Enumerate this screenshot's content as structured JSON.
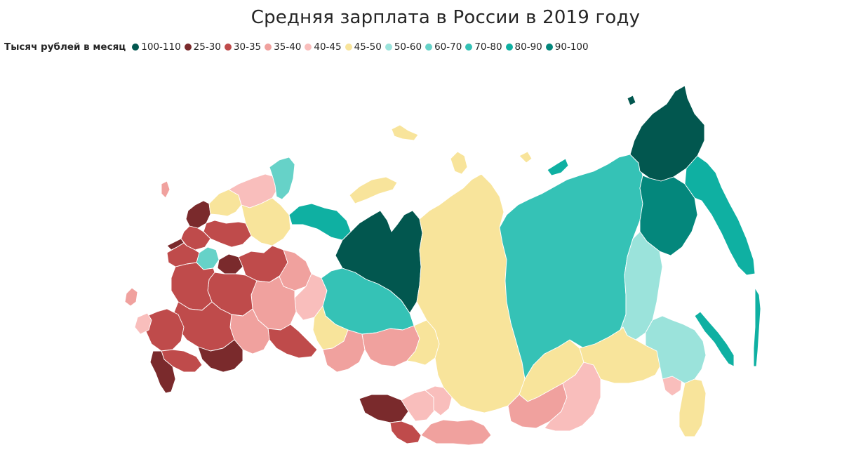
{
  "title": "Средняя зарплата в России в 2019 году",
  "legend": {
    "label": "Тысяч рублей в месяц",
    "items": [
      {
        "key": "100-110",
        "label": "100-110",
        "color": "#02574f"
      },
      {
        "key": "25-30",
        "label": "25-30",
        "color": "#7a2a2c"
      },
      {
        "key": "30-35",
        "label": "30-35",
        "color": "#bf4b4b"
      },
      {
        "key": "35-40",
        "label": "35-40",
        "color": "#f0a19e"
      },
      {
        "key": "40-45",
        "label": "40-45",
        "color": "#f9bebc"
      },
      {
        "key": "45-50",
        "label": "45-50",
        "color": "#f8e49b"
      },
      {
        "key": "50-60",
        "label": "50-60",
        "color": "#9be3db"
      },
      {
        "key": "60-70",
        "label": "60-70",
        "color": "#66d2c8"
      },
      {
        "key": "70-80",
        "label": "70-80",
        "color": "#35c2b6"
      },
      {
        "key": "80-90",
        "label": "80-90",
        "color": "#0fb0a2"
      },
      {
        "key": "90-100",
        "label": "90-100",
        "color": "#04877c"
      }
    ]
  },
  "chart_data": {
    "type": "choropleth",
    "title": "Средняя зарплата в России в 2019 году",
    "unit": "Тысяч рублей в месяц",
    "legend_placement": "top-left",
    "bins": [
      "100-110",
      "25-30",
      "30-35",
      "35-40",
      "40-45",
      "45-50",
      "50-60",
      "60-70",
      "70-80",
      "80-90",
      "90-100"
    ]
  }
}
